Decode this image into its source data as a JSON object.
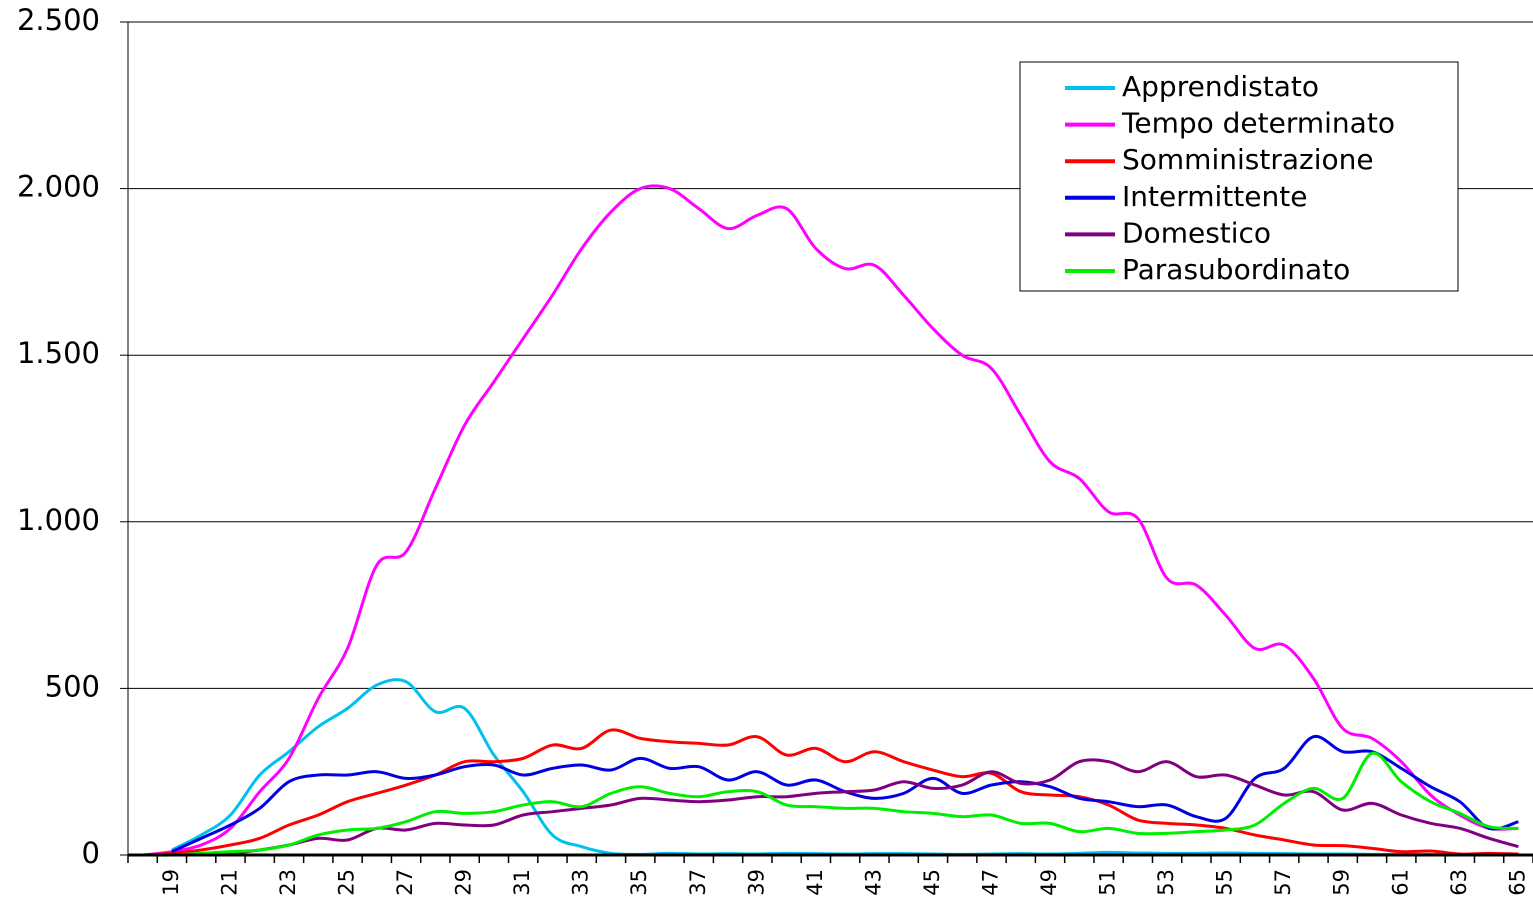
{
  "chart_data": {
    "type": "line",
    "categories": [
      null,
      "19",
      null,
      "21",
      null,
      "23",
      null,
      "25",
      null,
      "27",
      null,
      "29",
      null,
      "31",
      null,
      "33",
      null,
      "35",
      null,
      "37",
      null,
      "39",
      null,
      "41",
      null,
      "43",
      null,
      "45",
      null,
      "47",
      null,
      "49",
      null,
      "51",
      null,
      "53",
      null,
      "55",
      null,
      "57",
      null,
      "59",
      null,
      "61",
      null,
      "63",
      null,
      "65"
    ],
    "ylim": [
      0,
      2500
    ],
    "yticks": [
      0,
      500,
      {
        "value": 1000,
        "label": "1.000"
      },
      {
        "value": 1500,
        "label": "1.500"
      },
      {
        "value": 2000,
        "label": "2.000"
      },
      {
        "value": 2500,
        "label": "2.500"
      }
    ],
    "grid": true,
    "legend": "upper right",
    "series": [
      {
        "name": "Apprendistato",
        "color": "#00c0f0",
        "values": [
          null,
          15,
          60,
          120,
          240,
          310,
          385,
          440,
          510,
          520,
          430,
          440,
          300,
          190,
          60,
          25,
          5,
          2,
          5,
          3,
          4,
          3,
          5,
          4,
          3,
          4,
          4,
          3,
          2,
          3,
          4,
          3,
          5,
          8,
          6,
          5,
          5,
          6,
          5,
          4,
          3,
          3,
          2,
          2,
          2,
          1,
          1,
          1
        ]
      },
      {
        "name": "Tempo determinato",
        "color": "#ff00ff",
        "values": [
          0,
          10,
          30,
          80,
          190,
          290,
          470,
          620,
          870,
          910,
          1100,
          1290,
          1420,
          1550,
          1680,
          1820,
          1930,
          2000,
          2000,
          1940,
          1880,
          1920,
          1940,
          1820,
          1760,
          1770,
          1680,
          1580,
          1500,
          1460,
          1320,
          1180,
          1130,
          1030,
          1010,
          830,
          810,
          720,
          620,
          630,
          530,
          380,
          350,
          280,
          180,
          120,
          80,
          80
        ]
      },
      {
        "name": "Somministrazione",
        "color": "#ff0000",
        "values": [
          0,
          5,
          15,
          30,
          50,
          90,
          120,
          160,
          185,
          210,
          240,
          280,
          280,
          290,
          330,
          320,
          375,
          350,
          340,
          335,
          330,
          355,
          300,
          320,
          280,
          310,
          280,
          255,
          235,
          245,
          190,
          180,
          175,
          150,
          105,
          95,
          90,
          80,
          60,
          45,
          30,
          28,
          20,
          10,
          12,
          3,
          5,
          3
        ]
      },
      {
        "name": "Intermittente",
        "color": "#0000e0",
        "values": [
          null,
          10,
          50,
          90,
          140,
          220,
          240,
          240,
          250,
          230,
          240,
          265,
          270,
          240,
          260,
          270,
          255,
          290,
          260,
          265,
          225,
          250,
          210,
          225,
          190,
          170,
          185,
          230,
          185,
          210,
          220,
          205,
          170,
          160,
          145,
          150,
          115,
          110,
          230,
          260,
          355,
          310,
          310,
          260,
          205,
          160,
          80,
          100
        ]
      },
      {
        "name": "Domestico",
        "color": "#800080",
        "values": [
          0,
          0,
          2,
          5,
          15,
          30,
          50,
          45,
          80,
          75,
          95,
          90,
          90,
          120,
          130,
          140,
          150,
          170,
          165,
          160,
          165,
          175,
          175,
          185,
          190,
          195,
          220,
          200,
          210,
          250,
          215,
          225,
          280,
          280,
          250,
          280,
          235,
          240,
          210,
          180,
          190,
          135,
          155,
          120,
          95,
          80,
          50,
          25
        ]
      },
      {
        "name": "Parasubordinato",
        "color": "#00ee00",
        "values": [
          0,
          0,
          5,
          10,
          15,
          30,
          60,
          75,
          80,
          100,
          130,
          125,
          130,
          150,
          160,
          145,
          185,
          205,
          185,
          175,
          190,
          190,
          150,
          145,
          140,
          140,
          130,
          125,
          115,
          120,
          95,
          95,
          70,
          80,
          65,
          65,
          70,
          75,
          90,
          155,
          200,
          170,
          305,
          220,
          160,
          125,
          85,
          80
        ]
      }
    ]
  }
}
